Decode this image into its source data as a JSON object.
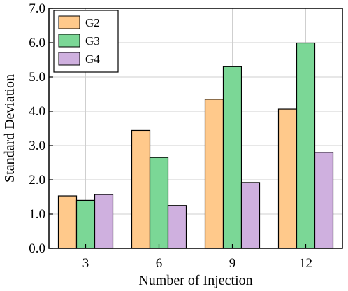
{
  "chart_data": {
    "type": "bar",
    "xlabel": "Number of Injection",
    "ylabel": "Standard Deviation",
    "categories": [
      "3",
      "6",
      "9",
      "12"
    ],
    "ylim": [
      0,
      7
    ],
    "yticks": [
      "0.0",
      "1.0",
      "2.0",
      "3.0",
      "4.0",
      "5.0",
      "6.0",
      "7.0"
    ],
    "grid": true,
    "legend_position": "top-left",
    "series": [
      {
        "name": "G2",
        "color": "#ffc98b",
        "values": [
          1.53,
          3.44,
          4.35,
          4.06
        ]
      },
      {
        "name": "G3",
        "color": "#7bd796",
        "values": [
          1.4,
          2.65,
          5.3,
          5.99
        ]
      },
      {
        "name": "G4",
        "color": "#cfb0df",
        "values": [
          1.57,
          1.25,
          1.92,
          2.8
        ]
      }
    ]
  }
}
